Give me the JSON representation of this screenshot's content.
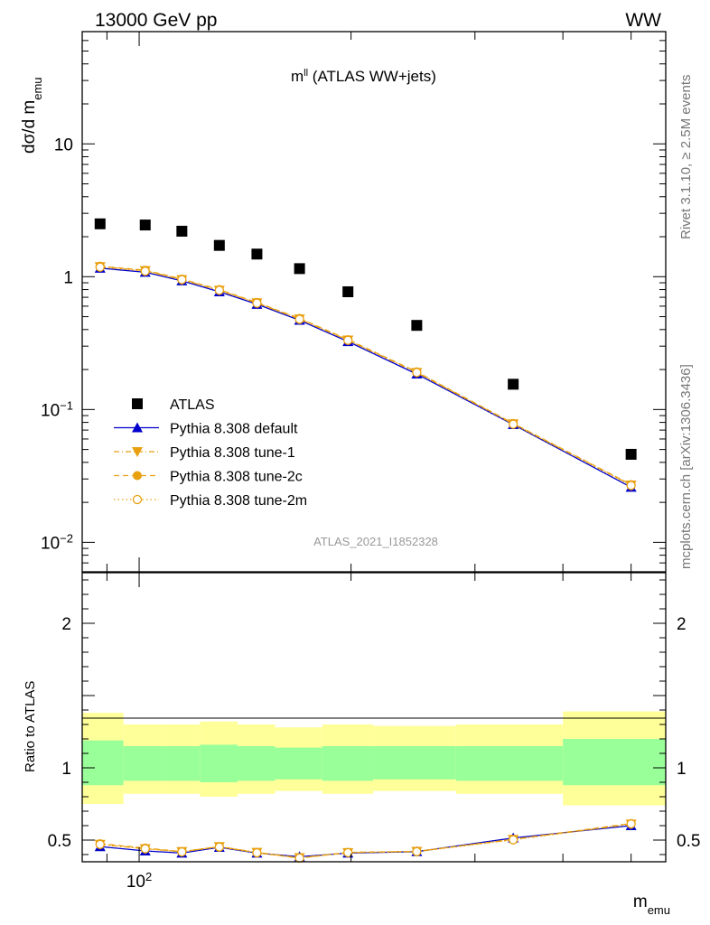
{
  "header": {
    "left": "13000 GeV pp",
    "right": "WW"
  },
  "side": {
    "rivet": "Rivet 3.1.10, ≥ 2.5M events",
    "mcplots": "mcplots.cern.ch [arXiv:1306.3436]"
  },
  "plot_title": "mll (ATLAS WW+jets)",
  "watermark": "ATLAS_2021_I1852328",
  "colors": {
    "data": "#000000",
    "default": "#0000cc",
    "tunes": "#e8a010",
    "band_inner": "#99ff99",
    "band_outer": "#ffff99"
  },
  "chart_data": [
    {
      "type": "line",
      "panel": "main",
      "ylabel": "dσ/d memu",
      "xlabel": "memu",
      "xscale": "log",
      "yscale": "log",
      "xlim": [
        83,
        560
      ],
      "ylim": [
        0.006,
        70
      ],
      "x": [
        88,
        102,
        115,
        130,
        147,
        169,
        198,
        248,
        340,
        500
      ],
      "legend_position": "lower-left",
      "series": [
        {
          "name": "ATLAS",
          "style": "square",
          "values": [
            2.5,
            2.45,
            2.2,
            1.72,
            1.48,
            1.15,
            0.77,
            0.43,
            0.155,
            0.046
          ]
        },
        {
          "name": "Pythia 8.308 default",
          "style": "line-triangle",
          "values": [
            1.16,
            1.08,
            0.93,
            0.77,
            0.62,
            0.47,
            0.325,
            0.185,
            0.077,
            0.026
          ]
        },
        {
          "name": "Pythia 8.308 tune-1",
          "style": "dashdot-triangle-down",
          "values": [
            1.19,
            1.11,
            0.95,
            0.79,
            0.635,
            0.48,
            0.333,
            0.19,
            0.078,
            0.027
          ]
        },
        {
          "name": "Pythia 8.308 tune-2c",
          "style": "dashed-dot",
          "values": [
            1.2,
            1.12,
            0.96,
            0.8,
            0.64,
            0.485,
            0.336,
            0.192,
            0.0785,
            0.0272
          ]
        },
        {
          "name": "Pythia 8.308 tune-2m",
          "style": "dotted-circle",
          "values": [
            1.18,
            1.1,
            0.95,
            0.79,
            0.632,
            0.478,
            0.332,
            0.19,
            0.0775,
            0.0268
          ]
        }
      ],
      "yticks": [
        {
          "value": 10,
          "label": "10"
        },
        {
          "value": 1,
          "label": "1"
        },
        {
          "value": 0.1,
          "label": "10",
          "sup": "−1"
        },
        {
          "value": 0.01,
          "label": "10",
          "sup": "−2"
        }
      ],
      "xtick_label": {
        "value": 100,
        "label": "10",
        "sup": "2"
      }
    },
    {
      "type": "line",
      "panel": "ratio",
      "ylabel": "Ratio to ATLAS",
      "ylim": [
        0.35,
        2.35
      ],
      "x": [
        88,
        102,
        115,
        130,
        147,
        169,
        198,
        248,
        340,
        500
      ],
      "bin_edges": [
        83,
        95,
        108,
        122,
        138,
        156,
        182,
        215,
        282,
        400,
        560
      ],
      "band_inner": {
        "low": [
          0.88,
          0.91,
          0.91,
          0.9,
          0.91,
          0.92,
          0.91,
          0.92,
          0.91,
          0.88
        ],
        "high": [
          1.19,
          1.15,
          1.15,
          1.16,
          1.15,
          1.14,
          1.15,
          1.15,
          1.15,
          1.2
        ]
      },
      "band_outer": {
        "low": [
          0.75,
          0.82,
          0.82,
          0.8,
          0.82,
          0.84,
          0.82,
          0.84,
          0.82,
          0.74
        ],
        "high": [
          1.38,
          1.3,
          1.3,
          1.32,
          1.3,
          1.28,
          1.3,
          1.29,
          1.3,
          1.39
        ]
      },
      "series": [
        {
          "name": "Pythia 8.308 default",
          "values": [
            0.455,
            0.425,
            0.41,
            0.45,
            0.41,
            0.385,
            0.41,
            0.42,
            0.515,
            0.6
          ]
        },
        {
          "name": "Pythia 8.308 tune-1",
          "values": [
            0.47,
            0.44,
            0.42,
            0.455,
            0.415,
            0.378,
            0.413,
            0.422,
            0.505,
            0.61
          ]
        },
        {
          "name": "Pythia 8.308 tune-2c",
          "values": [
            0.475,
            0.445,
            0.42,
            0.455,
            0.413,
            0.375,
            0.415,
            0.422,
            0.505,
            0.615
          ]
        },
        {
          "name": "Pythia 8.308 tune-2m",
          "values": [
            0.47,
            0.44,
            0.418,
            0.452,
            0.412,
            0.376,
            0.413,
            0.42,
            0.502,
            0.612
          ]
        }
      ],
      "yticks": [
        {
          "value": 0.5,
          "label": "0.5"
        },
        {
          "value": 1,
          "label": "1"
        },
        {
          "value": 2,
          "label": "2"
        }
      ]
    }
  ]
}
